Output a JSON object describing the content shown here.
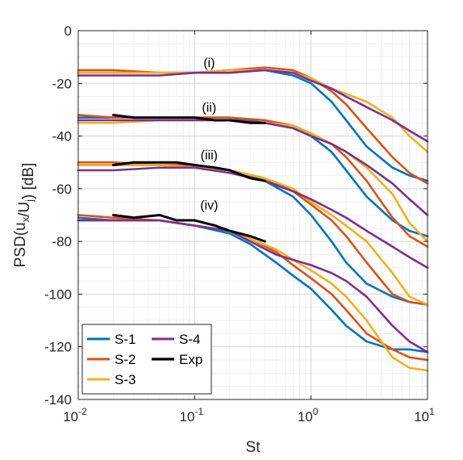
{
  "chart_data": {
    "type": "line",
    "title": "",
    "xlabel": "St",
    "ylabel": "PSD(u_x/U_j) [dB]",
    "xscale": "log",
    "xlim": [
      0.01,
      10
    ],
    "ylim": [
      -140,
      0
    ],
    "x_ticks": [
      {
        "value": 0.01,
        "base": "10",
        "exp": "-2"
      },
      {
        "value": 0.1,
        "base": "10",
        "exp": "-1"
      },
      {
        "value": 1,
        "base": "10",
        "exp": "0"
      },
      {
        "value": 10,
        "base": "10",
        "exp": "1"
      }
    ],
    "y_ticks": [
      0,
      -20,
      -40,
      -60,
      -80,
      -100,
      -120,
      -140
    ],
    "grid": true,
    "legend_position": "bottom-left",
    "legend": [
      "S-1",
      "S-4",
      "S-2",
      "Exp",
      "S-3"
    ],
    "colors": {
      "S-1": "#0072BD",
      "S-2": "#D95319",
      "S-3": "#EDB120",
      "S-4": "#7E2F8E",
      "Exp": "#000000"
    },
    "annotations": [
      {
        "text": "(i)",
        "x": 0.11,
        "y": -12
      },
      {
        "text": "(ii)",
        "x": 0.11,
        "y": -29
      },
      {
        "text": "(iii)",
        "x": 0.11,
        "y": -47
      },
      {
        "text": "(iv)",
        "x": 0.11,
        "y": -66
      }
    ],
    "groups": [
      {
        "label": "(i)",
        "series": [
          {
            "name": "S-1",
            "x": [
              0.01,
              0.02,
              0.05,
              0.1,
              0.2,
              0.4,
              0.7,
              1,
              1.5,
              2,
              3,
              5,
              7,
              10
            ],
            "y": [
              -16,
              -16,
              -16,
              -16,
              -15,
              -15,
              -17,
              -20,
              -27,
              -34,
              -44,
              -52,
              -55,
              -57
            ]
          },
          {
            "name": "S-2",
            "x": [
              0.01,
              0.02,
              0.05,
              0.1,
              0.2,
              0.4,
              0.7,
              1,
              1.5,
              2,
              3,
              5,
              7,
              10
            ],
            "y": [
              -15,
              -15,
              -16,
              -16,
              -15,
              -14,
              -15,
              -18,
              -23,
              -28,
              -37,
              -48,
              -54,
              -58
            ]
          },
          {
            "name": "S-3",
            "x": [
              0.01,
              0.02,
              0.05,
              0.1,
              0.2,
              0.4,
              0.7,
              1,
              1.5,
              2,
              3,
              5,
              7,
              10
            ],
            "y": [
              -16,
              -16,
              -16,
              -16,
              -15,
              -15,
              -16,
              -18,
              -22,
              -24,
              -27,
              -33,
              -40,
              -46
            ]
          },
          {
            "name": "S-4",
            "x": [
              0.01,
              0.02,
              0.05,
              0.1,
              0.2,
              0.4,
              0.7,
              1,
              1.5,
              2,
              3,
              5,
              7,
              10
            ],
            "y": [
              -17,
              -17,
              -17,
              -16,
              -16,
              -15,
              -16,
              -19,
              -22,
              -25,
              -29,
              -34,
              -38,
              -42
            ]
          }
        ]
      },
      {
        "label": "(ii)",
        "series": [
          {
            "name": "S-1",
            "x": [
              0.01,
              0.02,
              0.05,
              0.1,
              0.2,
              0.4,
              0.7,
              1,
              1.5,
              2,
              3,
              5,
              7,
              10
            ],
            "y": [
              -33,
              -33,
              -33,
              -33,
              -33,
              -35,
              -37,
              -40,
              -46,
              -53,
              -63,
              -72,
              -76,
              -78
            ]
          },
          {
            "name": "S-2",
            "x": [
              0.01,
              0.02,
              0.05,
              0.1,
              0.2,
              0.4,
              0.7,
              1,
              1.5,
              2,
              3,
              5,
              7,
              10
            ],
            "y": [
              -32,
              -33,
              -33,
              -33,
              -33,
              -34,
              -36,
              -39,
              -43,
              -48,
              -57,
              -71,
              -78,
              -82
            ]
          },
          {
            "name": "S-3",
            "x": [
              0.01,
              0.02,
              0.05,
              0.1,
              0.2,
              0.4,
              0.7,
              1,
              1.5,
              2,
              3,
              5,
              7,
              10
            ],
            "y": [
              -35,
              -35,
              -34,
              -34,
              -34,
              -35,
              -36,
              -39,
              -43,
              -46,
              -52,
              -62,
              -73,
              -80
            ]
          },
          {
            "name": "S-4",
            "x": [
              0.01,
              0.02,
              0.05,
              0.1,
              0.2,
              0.4,
              0.7,
              1,
              1.5,
              2,
              3,
              5,
              7,
              10
            ],
            "y": [
              -34,
              -34,
              -34,
              -34,
              -34,
              -35,
              -37,
              -40,
              -43,
              -46,
              -51,
              -58,
              -64,
              -70
            ]
          },
          {
            "name": "Exp",
            "x": [
              0.02,
              0.03,
              0.05,
              0.07,
              0.1,
              0.15,
              0.2,
              0.3,
              0.4
            ],
            "y": [
              -32,
              -33,
              -33,
              -33,
              -33,
              -34,
              -34,
              -35,
              -35
            ]
          }
        ]
      },
      {
        "label": "(iii)",
        "series": [
          {
            "name": "S-1",
            "x": [
              0.01,
              0.02,
              0.05,
              0.1,
              0.2,
              0.4,
              0.7,
              1,
              1.5,
              2,
              3,
              5,
              7,
              10
            ],
            "y": [
              -51,
              -51,
              -51,
              -52,
              -53,
              -57,
              -63,
              -70,
              -80,
              -88,
              -96,
              -101,
              -103,
              -104
            ]
          },
          {
            "name": "S-2",
            "x": [
              0.01,
              0.02,
              0.05,
              0.1,
              0.2,
              0.4,
              0.7,
              1,
              1.5,
              2,
              3,
              5,
              7,
              10
            ],
            "y": [
              -50,
              -50,
              -51,
              -51,
              -53,
              -56,
              -61,
              -66,
              -72,
              -78,
              -88,
              -100,
              -103,
              -104
            ]
          },
          {
            "name": "S-3",
            "x": [
              0.01,
              0.02,
              0.05,
              0.1,
              0.2,
              0.4,
              0.7,
              1,
              1.5,
              2,
              3,
              5,
              7,
              10
            ],
            "y": [
              -51,
              -51,
              -51,
              -52,
              -53,
              -56,
              -60,
              -65,
              -70,
              -74,
              -80,
              -92,
              -101,
              -104
            ]
          },
          {
            "name": "S-4",
            "x": [
              0.01,
              0.02,
              0.05,
              0.1,
              0.2,
              0.4,
              0.7,
              1,
              1.5,
              2,
              3,
              5,
              7,
              10
            ],
            "y": [
              -53,
              -53,
              -52,
              -52,
              -54,
              -57,
              -61,
              -64,
              -68,
              -71,
              -76,
              -82,
              -86,
              -90
            ]
          },
          {
            "name": "Exp",
            "x": [
              0.02,
              0.03,
              0.05,
              0.07,
              0.1,
              0.15,
              0.2,
              0.3,
              0.4
            ],
            "y": [
              -51,
              -50,
              -50,
              -50,
              -51,
              -52,
              -53,
              -56,
              -57
            ]
          }
        ]
      },
      {
        "label": "(iv)",
        "series": [
          {
            "name": "S-1",
            "x": [
              0.01,
              0.02,
              0.05,
              0.1,
              0.2,
              0.3,
              0.5,
              0.7,
              1,
              1.5,
              2,
              3,
              5,
              7,
              10
            ],
            "y": [
              -71,
              -72,
              -72,
              -74,
              -77,
              -81,
              -88,
              -93,
              -98,
              -106,
              -112,
              -118,
              -121,
              -121,
              -122
            ]
          },
          {
            "name": "S-2",
            "x": [
              0.01,
              0.02,
              0.05,
              0.1,
              0.2,
              0.3,
              0.5,
              0.7,
              1,
              1.5,
              2,
              3,
              5,
              7,
              10
            ],
            "y": [
              -70,
              -71,
              -72,
              -74,
              -76,
              -79,
              -84,
              -89,
              -94,
              -100,
              -106,
              -115,
              -121,
              -124,
              -125
            ]
          },
          {
            "name": "S-3",
            "x": [
              0.01,
              0.02,
              0.05,
              0.1,
              0.2,
              0.3,
              0.5,
              0.7,
              1,
              1.5,
              2,
              3,
              5,
              7,
              10
            ],
            "y": [
              -72,
              -72,
              -72,
              -74,
              -76,
              -79,
              -83,
              -87,
              -91,
              -96,
              -101,
              -110,
              -124,
              -128,
              -129
            ]
          },
          {
            "name": "S-4",
            "x": [
              0.01,
              0.02,
              0.05,
              0.1,
              0.2,
              0.3,
              0.5,
              0.7,
              1,
              1.5,
              2,
              3,
              5,
              7,
              10
            ],
            "y": [
              -72,
              -72,
              -72,
              -74,
              -76,
              -80,
              -85,
              -87,
              -89,
              -92,
              -95,
              -101,
              -112,
              -118,
              -122
            ]
          },
          {
            "name": "Exp",
            "x": [
              0.02,
              0.03,
              0.05,
              0.07,
              0.1,
              0.15,
              0.2,
              0.3,
              0.4
            ],
            "y": [
              -70,
              -71,
              -70,
              -72,
              -72,
              -74,
              -76,
              -78,
              -80
            ]
          }
        ]
      }
    ]
  }
}
